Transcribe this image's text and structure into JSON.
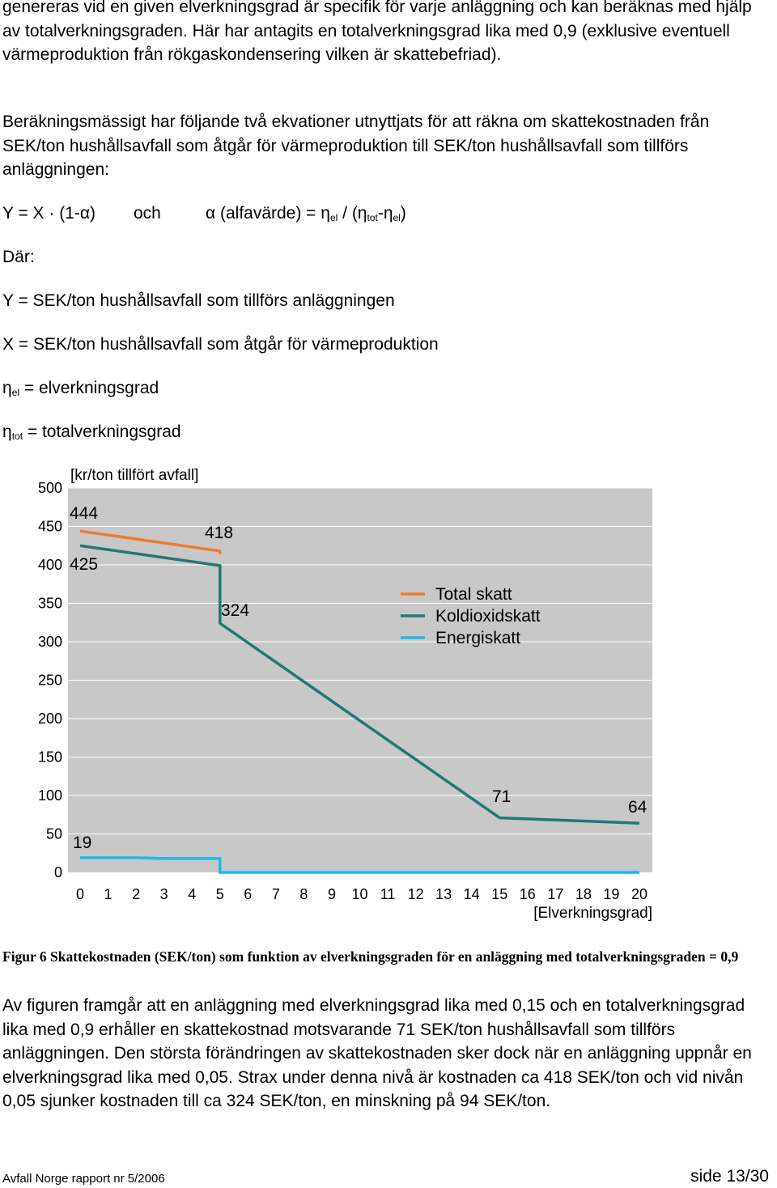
{
  "paragraph_1": "genereras vid en given elverkningsgrad är specifik för varje anläggning och kan beräknas med hjälp av totalverkningsgraden. Här har antagits en totalverkningsgrad lika med 0,9 (exklusive eventuell värmeproduktion från rökgaskondensering vilken är skattebefriad).",
  "paragraph_2": "Beräkningsmässigt har följande två ekvationer utnyttjats för att räkna om skattekostnaden från SEK/ton hushållsavfall som åtgår för värmeproduktion till SEK/ton hushållsavfall som tillförs anläggningen:",
  "equation": {
    "eq1": "Y = X · (1-α)",
    "och": "och",
    "eq2_prefix": "α (alfavärde) = η",
    "sub_el": "el",
    "slash": " / (η",
    "sub_tot": "tot",
    "dash_eta": "-η",
    "close": ")"
  },
  "dar": "Där:",
  "def_y": "Y = SEK/ton hushållsavfall som tillförs anläggningen",
  "def_x": "X = SEK/ton hushållsavfall som åtgår för värmeproduktion",
  "def_el": {
    "eta": "η",
    "sub": "el",
    "text": " = elverkningsgrad"
  },
  "def_tot": {
    "eta": "η",
    "sub": "tot",
    "text": " = totalverkningsgrad"
  },
  "chart_data": {
    "type": "line",
    "ylabel": "[kr/ton tillfört avfall]",
    "xlabel": "[Elverkningsgrad]",
    "ylim": [
      0,
      500
    ],
    "xlim": [
      0,
      20
    ],
    "y_ticks": [
      "0",
      "50",
      "100",
      "150",
      "200",
      "250",
      "300",
      "350",
      "400",
      "450",
      "500"
    ],
    "x_ticks": [
      "0",
      "1",
      "2",
      "3",
      "4",
      "5",
      "6",
      "7",
      "8",
      "9",
      "10",
      "11",
      "12",
      "13",
      "14",
      "15",
      "16",
      "17",
      "18",
      "19",
      "20"
    ],
    "series": [
      {
        "name": "Total skatt",
        "color": "#ef7a2e",
        "points": [
          [
            0,
            444
          ],
          [
            5,
            418
          ],
          [
            5,
            414
          ]
        ]
      },
      {
        "name": "Koldioxidskatt",
        "color": "#1f7a72",
        "points": [
          [
            0,
            425
          ],
          [
            5,
            399
          ],
          [
            5,
            324
          ],
          [
            15,
            71
          ],
          [
            20,
            64
          ]
        ]
      },
      {
        "name": "Energiskatt",
        "color": "#1eb8ec",
        "points": [
          [
            0,
            19
          ],
          [
            2,
            19
          ],
          [
            3,
            18
          ],
          [
            5,
            18
          ],
          [
            5,
            0
          ],
          [
            20,
            0
          ]
        ]
      }
    ],
    "annotations": [
      "444",
      "418",
      "425",
      "324",
      "71",
      "64",
      "19"
    ]
  },
  "caption": "Figur 6 Skattekostnaden (SEK/ton) som funktion av elverkningsgraden för en anläggning med totalverkningsgraden = 0,9",
  "paragraph_3": "Av figuren framgår att en anläggning med elverkningsgrad lika med 0,15 och en totalverkningsgrad lika med 0,9 erhåller en skattekostnad motsvarande 71 SEK/ton hushållsavfall som tillförs anläggningen. Den största förändringen av skattekostnaden sker dock när en anläggning uppnår en elverkningsgrad lika med 0,05. Strax under denna nivå är kostnaden ca 418 SEK/ton och vid nivån 0,05 sjunker kostnaden till ca 324 SEK/ton, en minskning på 94 SEK/ton.",
  "footer": {
    "left": "Avfall Norge rapport nr 5/2006",
    "right": "side 13/30"
  }
}
